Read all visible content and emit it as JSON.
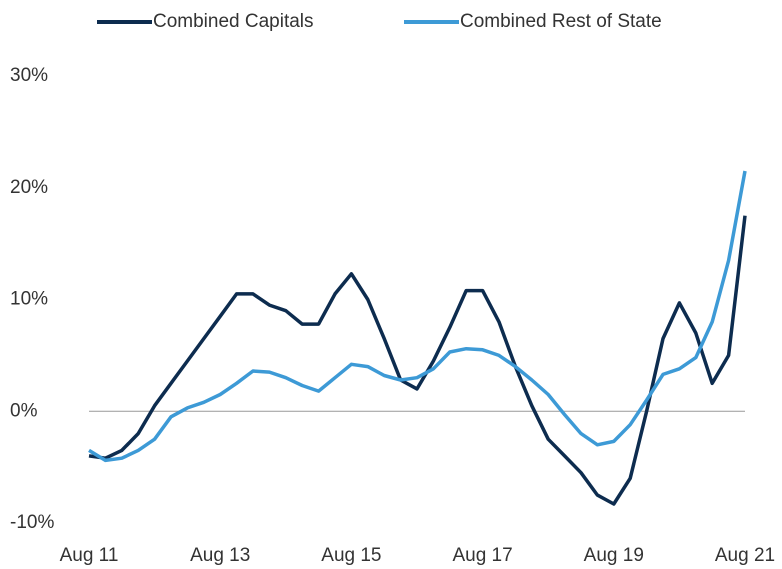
{
  "chart_data": {
    "type": "line",
    "categories": [
      "Aug 11",
      null,
      null,
      null,
      null,
      null,
      null,
      null,
      "Aug 13",
      null,
      null,
      null,
      null,
      null,
      null,
      null,
      "Aug 15",
      null,
      null,
      null,
      null,
      null,
      null,
      null,
      "Aug 17",
      null,
      null,
      null,
      null,
      null,
      null,
      null,
      "Aug 19",
      null,
      null,
      null,
      null,
      null,
      null,
      null,
      "Aug 21"
    ],
    "series": [
      {
        "name": "Combined Capitals",
        "color": "#0d2c4f",
        "values": [
          -4.0,
          -4.2,
          -3.5,
          -2.0,
          0.5,
          2.5,
          4.5,
          6.5,
          8.5,
          10.5,
          10.5,
          9.5,
          9.0,
          7.8,
          7.8,
          10.5,
          12.3,
          10.0,
          6.5,
          2.8,
          2.0,
          4.5,
          7.5,
          10.8,
          10.8,
          8.0,
          4.0,
          0.5,
          -2.5,
          -4.0,
          -5.5,
          -7.5,
          -8.3,
          -6.0,
          0.0,
          6.5,
          9.7,
          7.0,
          2.5,
          5.0,
          17.5
        ]
      },
      {
        "name": "Combined Rest of State",
        "color": "#3d9ad6",
        "values": [
          -3.5,
          -4.4,
          -4.2,
          -3.5,
          -2.5,
          -0.5,
          0.3,
          0.8,
          1.5,
          2.5,
          3.6,
          3.5,
          3.0,
          2.3,
          1.8,
          3.0,
          4.2,
          4.0,
          3.2,
          2.8,
          3.0,
          3.8,
          5.3,
          5.6,
          5.5,
          5.0,
          4.0,
          2.8,
          1.5,
          -0.3,
          -2.0,
          -3.0,
          -2.7,
          -1.2,
          1.0,
          3.3,
          3.8,
          4.8,
          8.0,
          13.5,
          21.5
        ]
      }
    ],
    "ylim": [
      -10,
      30
    ],
    "yticks": [
      {
        "value": -10,
        "label": "-10%"
      },
      {
        "value": 0,
        "label": "0%"
      },
      {
        "value": 10,
        "label": "10%"
      },
      {
        "value": 20,
        "label": "20%"
      },
      {
        "value": 30,
        "label": "30%"
      }
    ],
    "zero_line": true,
    "legend": "top"
  }
}
